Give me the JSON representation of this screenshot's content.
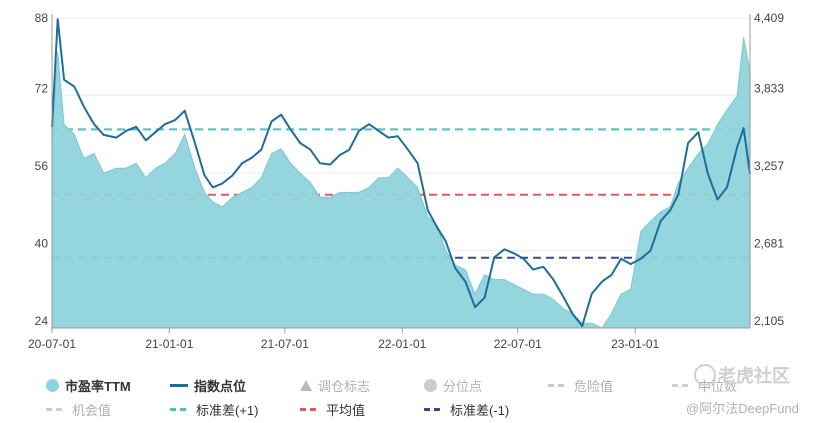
{
  "chart_data": {
    "type": "line",
    "x_ticks": [
      "20-07-01",
      "21-01-01",
      "21-07-01",
      "22-01-01",
      "22-07-01",
      "23-01-01"
    ],
    "y_left_ticks": [
      "24",
      "40",
      "56",
      "72",
      "88"
    ],
    "y_right_ticks": [
      "2,105",
      "2,681",
      "3,257",
      "3,833",
      "4,409"
    ],
    "ylim_left": [
      24,
      88
    ],
    "ylim_right": [
      2105,
      4409
    ],
    "reference_lines": [
      {
        "name": "标准差(+1)",
        "value": 65,
        "color": "#4fbfbf"
      },
      {
        "name": "平均值",
        "value": 51.5,
        "color": "#e05a5a"
      },
      {
        "name": "标准差(-1)",
        "value": 38.5,
        "color": "#3a4a8c"
      }
    ],
    "series": [
      {
        "name": "市盈率TTM",
        "axis": "left",
        "type": "area",
        "color": "#8fd3db",
        "x": [
          "2020-07-01",
          "2020-07-10",
          "2020-07-20",
          "2020-08-05",
          "2020-08-20",
          "2020-09-05",
          "2020-09-20",
          "2020-10-10",
          "2020-10-25",
          "2020-11-10",
          "2020-11-25",
          "2020-12-10",
          "2020-12-25",
          "2021-01-10",
          "2021-01-25",
          "2021-02-10",
          "2021-02-25",
          "2021-03-10",
          "2021-03-25",
          "2021-04-10",
          "2021-04-25",
          "2021-05-10",
          "2021-05-25",
          "2021-06-10",
          "2021-06-25",
          "2021-07-10",
          "2021-07-25",
          "2021-08-10",
          "2021-08-25",
          "2021-09-10",
          "2021-09-25",
          "2021-10-10",
          "2021-10-25",
          "2021-11-10",
          "2021-11-25",
          "2021-12-10",
          "2021-12-25",
          "2022-01-10",
          "2022-01-25",
          "2022-02-10",
          "2022-02-25",
          "2022-03-10",
          "2022-03-25",
          "2022-04-10",
          "2022-04-25",
          "2022-05-10",
          "2022-05-25",
          "2022-06-10",
          "2022-06-25",
          "2022-07-10",
          "2022-07-25",
          "2022-08-10",
          "2022-08-25",
          "2022-09-10",
          "2022-09-25",
          "2022-10-10",
          "2022-10-25",
          "2022-11-10",
          "2022-11-25",
          "2022-12-10",
          "2022-12-25",
          "2023-01-10",
          "2023-01-25",
          "2023-02-10",
          "2023-02-25",
          "2023-03-10",
          "2023-03-25",
          "2023-04-10",
          "2023-04-25",
          "2023-05-10",
          "2023-05-25",
          "2023-06-10",
          "2023-06-20",
          "2023-06-30"
        ],
        "values": [
          62,
          81,
          66,
          64,
          59,
          60,
          56,
          57,
          57,
          58,
          55,
          57,
          58,
          60,
          64,
          57,
          52,
          50,
          49,
          51,
          52,
          53,
          55,
          60,
          61,
          58,
          56,
          54,
          51,
          51,
          52,
          52,
          52,
          53,
          55,
          55,
          57,
          55,
          53,
          47,
          45,
          40,
          37,
          36,
          31,
          35,
          34,
          34,
          33,
          32,
          31,
          31,
          30,
          28,
          27,
          25,
          25,
          24,
          27,
          31,
          32,
          44,
          46,
          48,
          49,
          54,
          57,
          60,
          62,
          66,
          69,
          72,
          84,
          77
        ]
      },
      {
        "name": "指数点位",
        "axis": "right",
        "type": "line",
        "color": "#1f6d99",
        "x": [
          "2020-07-01",
          "2020-07-10",
          "2020-07-20",
          "2020-08-05",
          "2020-08-20",
          "2020-09-05",
          "2020-09-20",
          "2020-10-10",
          "2020-10-25",
          "2020-11-10",
          "2020-11-25",
          "2020-12-10",
          "2020-12-25",
          "2021-01-10",
          "2021-01-25",
          "2021-02-10",
          "2021-02-25",
          "2021-03-10",
          "2021-03-25",
          "2021-04-10",
          "2021-04-25",
          "2021-05-10",
          "2021-05-25",
          "2021-06-10",
          "2021-06-25",
          "2021-07-10",
          "2021-07-25",
          "2021-08-10",
          "2021-08-25",
          "2021-09-10",
          "2021-09-25",
          "2021-10-10",
          "2021-10-25",
          "2021-11-10",
          "2021-11-25",
          "2021-12-10",
          "2021-12-25",
          "2022-01-10",
          "2022-01-25",
          "2022-02-10",
          "2022-02-25",
          "2022-03-10",
          "2022-03-25",
          "2022-04-10",
          "2022-04-25",
          "2022-05-10",
          "2022-05-25",
          "2022-06-10",
          "2022-06-25",
          "2022-07-10",
          "2022-07-25",
          "2022-08-10",
          "2022-08-25",
          "2022-09-10",
          "2022-09-25",
          "2022-10-10",
          "2022-10-25",
          "2022-11-10",
          "2022-11-25",
          "2022-12-10",
          "2022-12-25",
          "2023-01-10",
          "2023-01-25",
          "2023-02-10",
          "2023-02-25",
          "2023-03-10",
          "2023-03-25",
          "2023-04-10",
          "2023-04-25",
          "2023-05-10",
          "2023-05-25",
          "2023-06-10",
          "2023-06-20",
          "2023-06-30"
        ],
        "values": [
          3600,
          4400,
          3950,
          3900,
          3750,
          3620,
          3540,
          3520,
          3570,
          3600,
          3500,
          3560,
          3620,
          3650,
          3720,
          3480,
          3240,
          3150,
          3180,
          3240,
          3330,
          3370,
          3430,
          3640,
          3690,
          3580,
          3480,
          3430,
          3330,
          3320,
          3390,
          3430,
          3570,
          3620,
          3570,
          3520,
          3530,
          3430,
          3330,
          2980,
          2850,
          2750,
          2550,
          2450,
          2260,
          2330,
          2630,
          2690,
          2660,
          2620,
          2540,
          2560,
          2470,
          2340,
          2210,
          2120,
          2360,
          2450,
          2500,
          2620,
          2580,
          2620,
          2680,
          2900,
          2980,
          3100,
          3480,
          3560,
          3250,
          3060,
          3150,
          3450,
          3590,
          3250
        ]
      }
    ]
  },
  "legend": {
    "row1": [
      "市盈率TTM",
      "指数点位",
      "调仓标志",
      "分位点",
      "危险值",
      "中位数"
    ],
    "row2": [
      "机会值",
      "标准差(+1)",
      "平均值",
      "标准差(-1)"
    ]
  },
  "watermark": {
    "site": "老虎社区",
    "author": "@阿尔法DeepFund"
  }
}
